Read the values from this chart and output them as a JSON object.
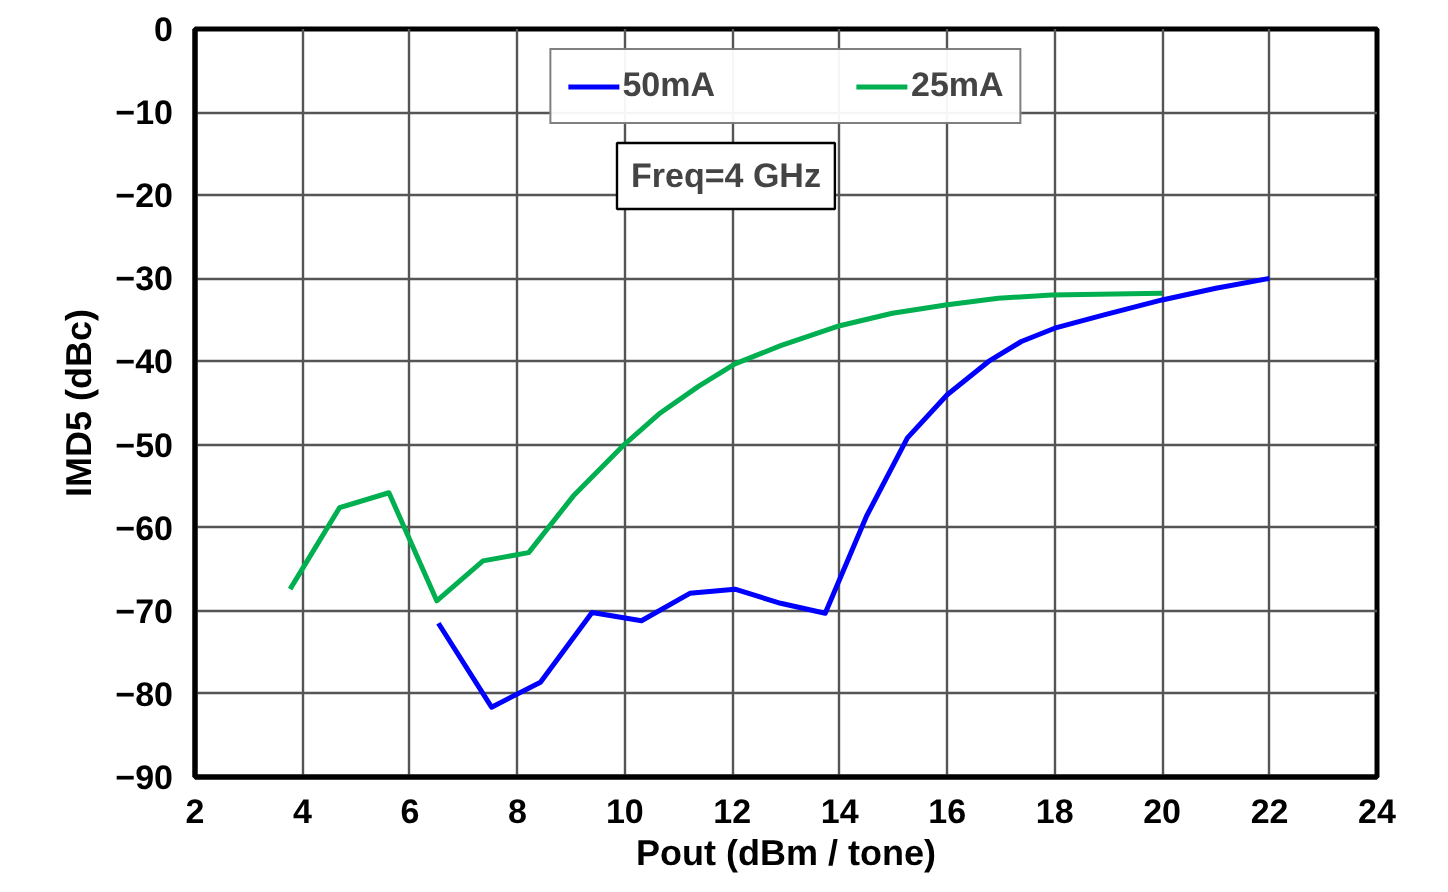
{
  "chart_data": {
    "type": "line",
    "xlabel": "Pout (dBm / tone)",
    "ylabel": "IMD5 (dBc)",
    "xlim": [
      2,
      24
    ],
    "xticks": [
      2,
      4,
      6,
      8,
      10,
      12,
      14,
      16,
      18,
      20,
      22,
      24
    ],
    "ylim": [
      -90,
      0
    ],
    "yticks": [
      -90,
      -80,
      -70,
      -60,
      -50,
      -40,
      -30,
      -20,
      -10,
      0
    ],
    "grid": true,
    "legend": "top",
    "marker": "none",
    "line_style": "solid",
    "annotations": [
      "Freq=4 GHz"
    ],
    "series": [
      {
        "name": "50mA",
        "color": "#0000ff",
        "x": [
          6.53,
          7.52,
          8.43,
          9.39,
          10.31,
          11.21,
          12.05,
          12.9,
          13.73,
          14.5,
          15.26,
          16.0,
          16.77,
          17.38,
          18.0,
          18.92,
          20.0,
          21.0,
          22.0
        ],
        "values": [
          -71.5,
          -81.6,
          -78.6,
          -70.2,
          -71.2,
          -67.9,
          -67.4,
          -69.1,
          -70.3,
          -58.6,
          -49.2,
          -44.0,
          -40.0,
          -37.6,
          -36.0,
          -34.4,
          -32.6,
          -31.2,
          -30.0
        ]
      },
      {
        "name": "25mA",
        "color": "#00b050",
        "x": [
          3.77,
          4.69,
          5.61,
          6.5,
          7.36,
          8.21,
          9.04,
          9.99,
          10.66,
          11.37,
          12.05,
          12.9,
          14.0,
          14.98,
          15.97,
          16.95,
          17.94,
          20.0
        ],
        "values": [
          -67.4,
          -57.6,
          -55.8,
          -68.8,
          -64.0,
          -63.0,
          -56.2,
          -50.0,
          -46.2,
          -43.0,
          -40.3,
          -38.1,
          -35.7,
          -34.2,
          -33.2,
          -32.4,
          -32.0,
          -31.8
        ]
      }
    ]
  }
}
